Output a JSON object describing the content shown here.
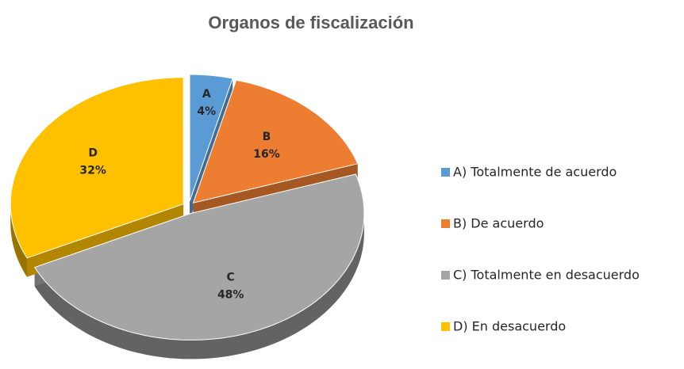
{
  "chart_data": {
    "type": "pie",
    "title": "Organos de fiscalización",
    "categories": [
      "A) Totalmente de acuerdo",
      "B) De acuerdo",
      "C) Totalmente en desacuerdo",
      "D) En desacuerdo"
    ],
    "slice_labels": [
      "A",
      "B",
      "C",
      "D"
    ],
    "values": [
      4,
      16,
      48,
      32
    ],
    "value_labels": [
      "4%",
      "16%",
      "48%",
      "32%"
    ],
    "colors": [
      "#5b9bd5",
      "#ed7d31",
      "#a5a5a5",
      "#ffc000"
    ],
    "legend": "right"
  }
}
